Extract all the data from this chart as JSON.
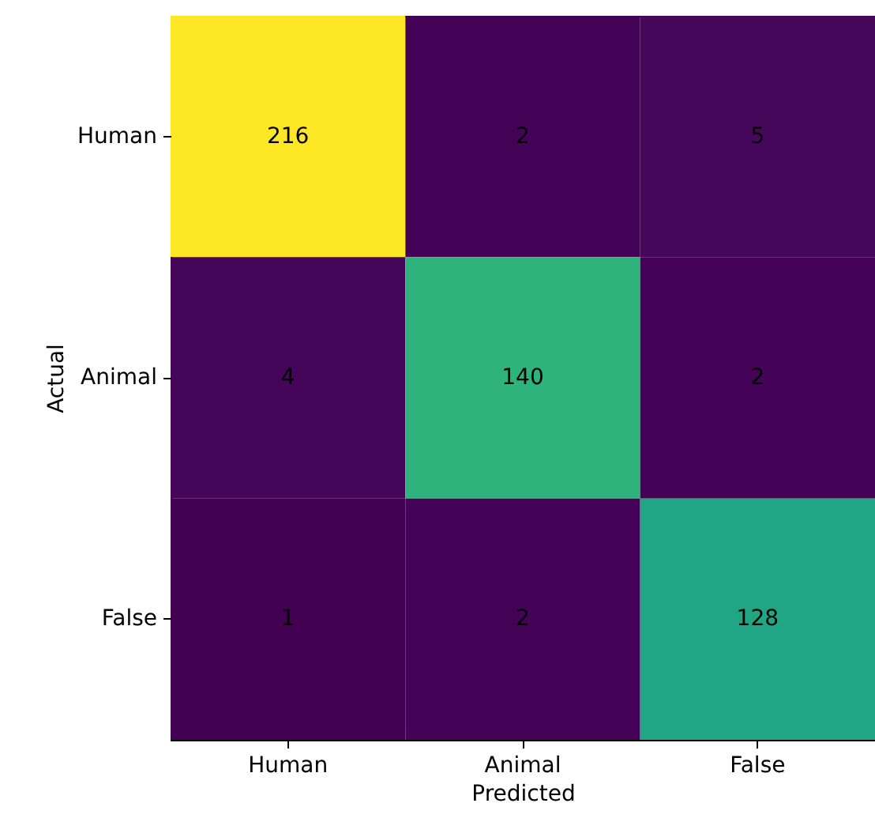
{
  "chart_data": {
    "type": "heatmap",
    "xlabel": "Predicted",
    "ylabel": "Actual",
    "categories": [
      "Human",
      "Animal",
      "False"
    ],
    "y_categories": [
      "Human",
      "Animal",
      "False"
    ],
    "cells": [
      [
        216,
        2,
        5
      ],
      [
        4,
        140,
        2
      ],
      [
        1,
        2,
        128
      ]
    ],
    "data_labels": true,
    "grid": false
  }
}
